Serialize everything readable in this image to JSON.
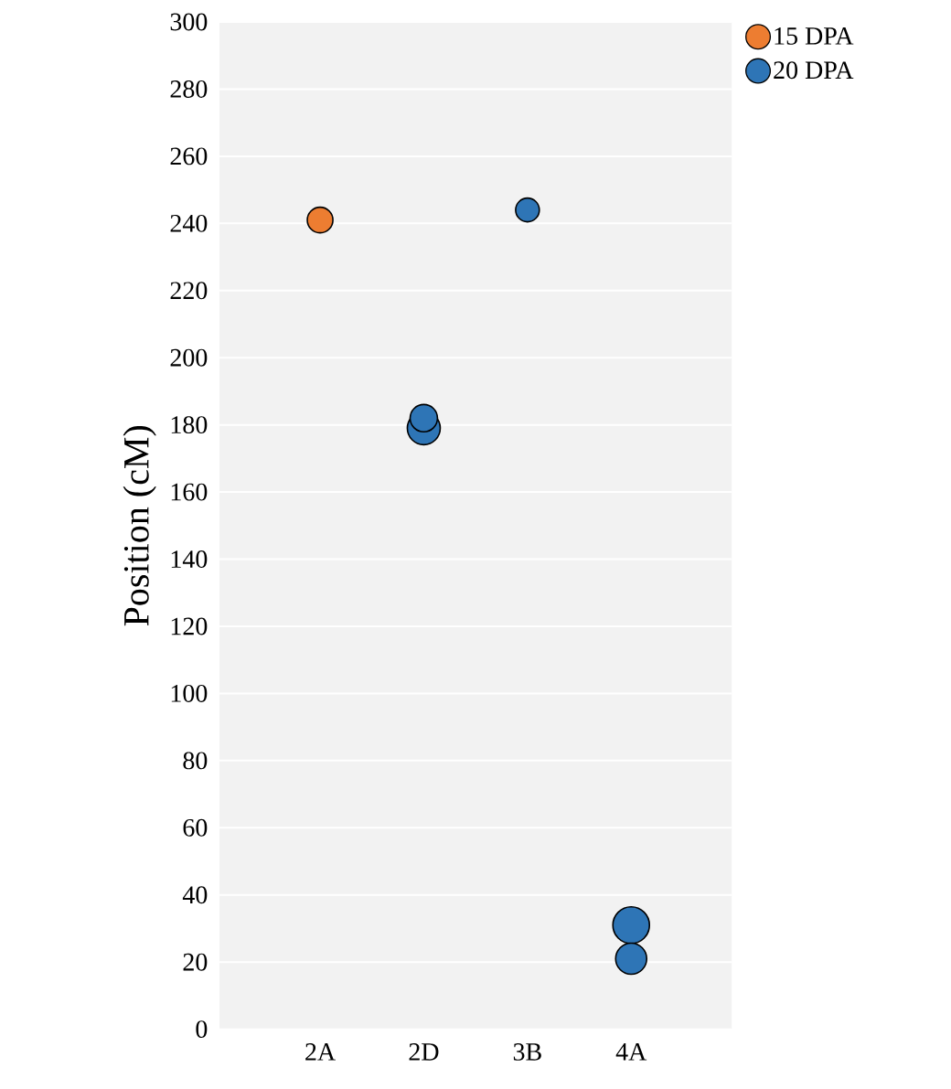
{
  "chart_data": {
    "type": "bubble",
    "ylabel": "Position (cM)",
    "categories": [
      "2A",
      "2D",
      "3B",
      "4A"
    ],
    "series": [
      {
        "name": "15 DPA",
        "color": "#ed7d31",
        "x": [
          "2A"
        ],
        "values": [
          241
        ],
        "sizes": [
          0.49
        ]
      },
      {
        "name": "20 DPA",
        "color": "#2e75b6",
        "x": [
          "2D",
          "2D",
          "3B",
          "4A",
          "4A"
        ],
        "values": [
          179,
          182,
          244,
          31,
          21
        ],
        "sizes": [
          0.81,
          0.56,
          0.42,
          1,
          0.72
        ]
      }
    ],
    "ylim": [
      0,
      300
    ],
    "yticks": [
      0,
      20,
      40,
      60,
      80,
      100,
      120,
      140,
      160,
      180,
      200,
      220,
      240,
      260,
      280,
      300
    ],
    "grid": "y",
    "legend": "top right",
    "marker": "circle"
  }
}
